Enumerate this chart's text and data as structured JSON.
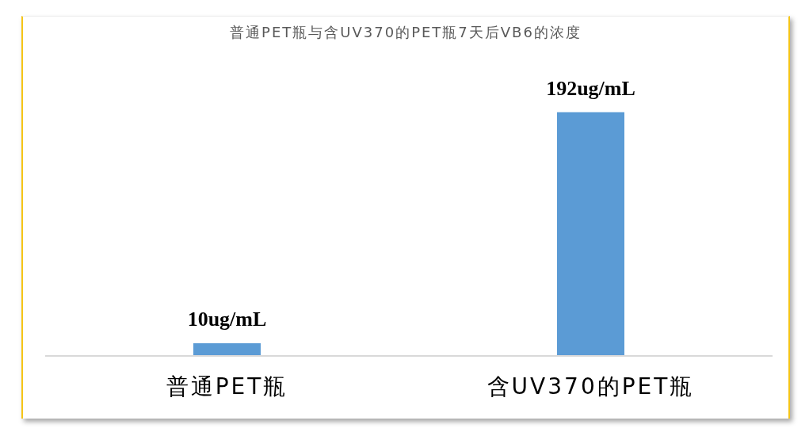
{
  "chart_data": {
    "type": "bar",
    "title": "普通PET瓶与含UV370的PET瓶7天后VB6的浓度",
    "categories": [
      "普通PET瓶",
      "含UV370的PET瓶"
    ],
    "values": [
      10,
      192
    ],
    "value_labels": [
      "10ug/mL",
      "192ug/mL"
    ],
    "color": "#5b9bd5"
  }
}
